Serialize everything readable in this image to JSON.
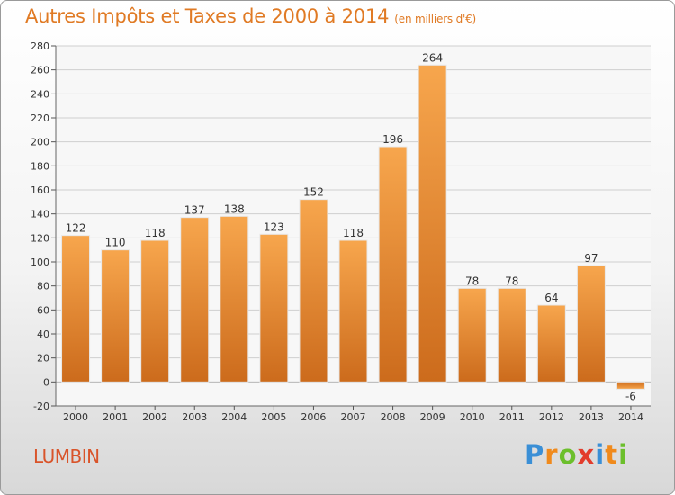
{
  "title": "Autres Impôts et Taxes de 2000 à 2014",
  "subtitle": "(en milliers d'€)",
  "place": "LUMBIN",
  "logo": {
    "letters": [
      "P",
      "r",
      "o",
      "x",
      "i",
      "t",
      "i"
    ],
    "colors": [
      "#3a8fd6",
      "#f08a1c",
      "#6cbf2c",
      "#e23c2c",
      "#3a8fd6",
      "#f08a1c",
      "#6cbf2c"
    ]
  },
  "colors": {
    "bar": "#f0902e",
    "bar_dark": "#c8661a",
    "text": "#e07a24"
  },
  "chart_data": {
    "type": "bar",
    "categories": [
      "2000",
      "2001",
      "2002",
      "2003",
      "2004",
      "2005",
      "2006",
      "2007",
      "2008",
      "2009",
      "2010",
      "2011",
      "2012",
      "2013",
      "2014"
    ],
    "values": [
      122,
      110,
      118,
      137,
      138,
      123,
      152,
      118,
      196,
      264,
      78,
      78,
      64,
      97,
      -6
    ],
    "ylim": [
      -20,
      280
    ],
    "yticks": [
      -20,
      0,
      20,
      40,
      60,
      80,
      100,
      120,
      140,
      160,
      180,
      200,
      220,
      240,
      260,
      280
    ],
    "grid": true
  }
}
